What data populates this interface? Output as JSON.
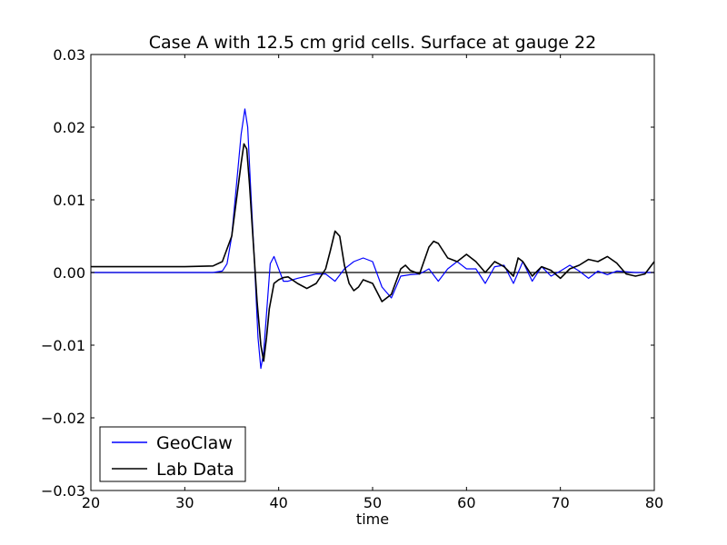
{
  "chart_data": {
    "type": "line",
    "title": "Case A with 12.5 cm grid cells.  Surface at gauge 22",
    "xlabel": "time",
    "ylabel": "",
    "xlim": [
      20,
      80
    ],
    "ylim": [
      -0.03,
      0.03
    ],
    "xticks": [
      20,
      30,
      40,
      50,
      60,
      70,
      80
    ],
    "xtick_labels": [
      "20",
      "30",
      "40",
      "50",
      "60",
      "70",
      "80"
    ],
    "yticks": [
      -0.03,
      -0.02,
      -0.01,
      0.0,
      0.01,
      0.02,
      0.03
    ],
    "ytick_labels": [
      "−0.03",
      "−0.02",
      "−0.01",
      "0.00",
      "0.01",
      "0.02",
      "0.03"
    ],
    "grid": false,
    "legend_position": "lower-left",
    "reference_line": {
      "y": 0,
      "color": "#000000"
    },
    "series": [
      {
        "name": "GeoClaw",
        "color": "#0000ff",
        "x": [
          20,
          30,
          33,
          34,
          34.5,
          35,
          35.5,
          36,
          36.4,
          36.7,
          37,
          37.4,
          37.8,
          38.1,
          38.4,
          38.8,
          39.1,
          39.5,
          40,
          40.5,
          41,
          42,
          43,
          44,
          45,
          46,
          47,
          48,
          49,
          50,
          51,
          52,
          53,
          54,
          55,
          56,
          57,
          58,
          59,
          60,
          61,
          62,
          63,
          64,
          65,
          66,
          67,
          68,
          69,
          70,
          71,
          72,
          73,
          74,
          75,
          76,
          77,
          78,
          79,
          80
        ],
        "y": [
          0,
          0,
          0,
          0.0002,
          0.0012,
          0.005,
          0.012,
          0.019,
          0.0225,
          0.02,
          0.012,
          0.002,
          -0.009,
          -0.0132,
          -0.011,
          -0.004,
          0.0012,
          0.0022,
          0.0005,
          -0.0012,
          -0.0012,
          -0.0008,
          -0.0005,
          -0.0002,
          -0.0002,
          -0.0012,
          0.0005,
          0.0015,
          0.002,
          0.0015,
          -0.002,
          -0.0035,
          -0.0005,
          -0.0003,
          -0.0002,
          0.0005,
          -0.0012,
          0.0005,
          0.0015,
          0.0005,
          0.0005,
          -0.0015,
          0.0008,
          0.001,
          -0.0015,
          0.0015,
          -0.0012,
          0.0008,
          -0.0005,
          0.0002,
          0.001,
          0.0002,
          -0.0008,
          0.0002,
          -0.0003,
          0.0002,
          0.0001,
          0.0,
          0.0,
          0.0
        ]
      },
      {
        "name": "Lab Data",
        "color": "#000000",
        "x": [
          20,
          25,
          30,
          33,
          34,
          35,
          35.5,
          36,
          36.3,
          36.6,
          36.9,
          37.3,
          37.7,
          38.1,
          38.4,
          38.7,
          39,
          39.5,
          40,
          40.5,
          41,
          42,
          43,
          44,
          45,
          45.5,
          46,
          46.5,
          47,
          47.5,
          48,
          48.5,
          49,
          50,
          51,
          52,
          53,
          53.5,
          54,
          55,
          56,
          56.5,
          57,
          58,
          59,
          60,
          61,
          62,
          63,
          64,
          65,
          65.5,
          66,
          67,
          68,
          69,
          70,
          71,
          72,
          73,
          74,
          75,
          76,
          77,
          78,
          79,
          80
        ],
        "y": [
          0.0008,
          0.0008,
          0.0008,
          0.0009,
          0.0015,
          0.005,
          0.01,
          0.015,
          0.0177,
          0.017,
          0.012,
          0.004,
          -0.004,
          -0.01,
          -0.0122,
          -0.009,
          -0.005,
          -0.0015,
          -0.001,
          -0.0007,
          -0.0006,
          -0.0015,
          -0.0022,
          -0.0015,
          0.0005,
          0.003,
          0.0057,
          0.005,
          0.001,
          -0.0015,
          -0.0025,
          -0.002,
          -0.001,
          -0.0015,
          -0.004,
          -0.003,
          0.0005,
          0.001,
          0.0003,
          -0.0002,
          0.0035,
          0.0043,
          0.004,
          0.002,
          0.0015,
          0.0025,
          0.0015,
          0.0,
          0.0015,
          0.0008,
          -0.0005,
          0.002,
          0.0015,
          -0.0005,
          0.0008,
          0.0003,
          -0.0008,
          0.0005,
          0.001,
          0.0018,
          0.0015,
          0.0022,
          0.0013,
          -0.0002,
          -0.0005,
          -0.0002,
          0.0015
        ]
      }
    ]
  }
}
